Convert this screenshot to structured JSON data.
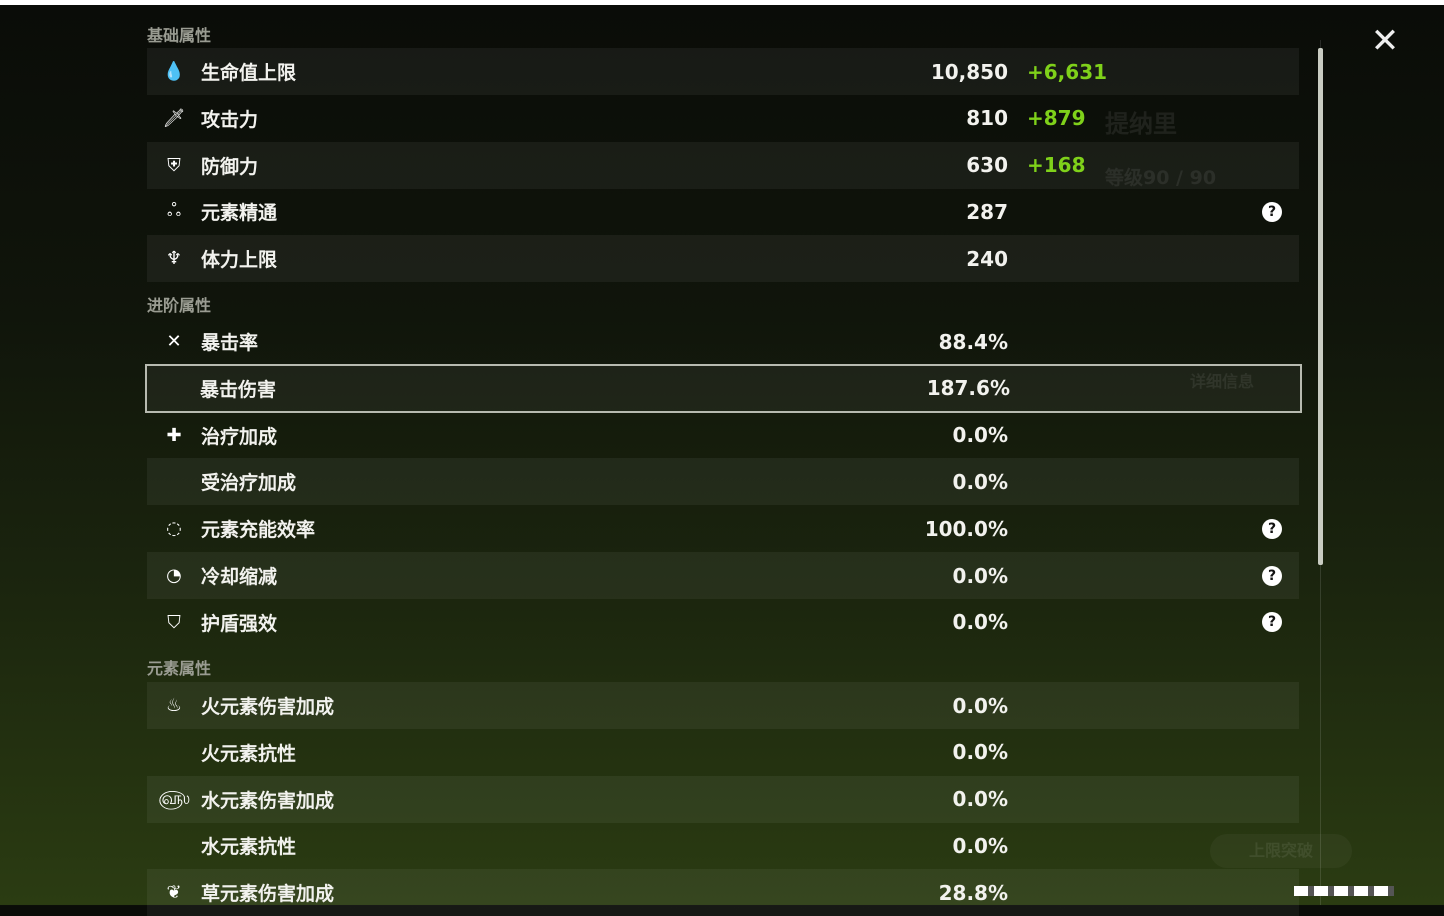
{
  "background": {
    "character_name": "提纳里",
    "level": "等级90 / 90",
    "details_button": "详细信息",
    "ascend_button": "上限突破"
  },
  "sections": [
    {
      "title": "基础属性",
      "rows": [
        {
          "icon": "hp-drop-icon",
          "glyph": "💧",
          "label": "生命值上限",
          "value": "10,850",
          "bonus": "+6,631"
        },
        {
          "icon": "sword-icon",
          "glyph": "🗡",
          "label": "攻击力",
          "value": "810",
          "bonus": "+879"
        },
        {
          "icon": "shield-icon",
          "glyph": "⛨",
          "label": "防御力",
          "value": "630",
          "bonus": "+168"
        },
        {
          "icon": "elemental-mastery-icon",
          "glyph": "ஃ",
          "label": "元素精通",
          "value": "287",
          "help": true
        },
        {
          "icon": "stamina-icon",
          "glyph": "♆",
          "label": "体力上限",
          "value": "240"
        }
      ]
    },
    {
      "title": "进阶属性",
      "rows": [
        {
          "icon": "crit-rate-icon",
          "glyph": "✕",
          "label": "暴击率",
          "value": "88.4%"
        },
        {
          "icon": "crit-dmg-icon",
          "glyph": "",
          "label": "暴击伤害",
          "value": "187.6%",
          "selected": true
        },
        {
          "icon": "healing-icon",
          "glyph": "✚",
          "label": "治疗加成",
          "value": "0.0%"
        },
        {
          "icon": "",
          "glyph": "",
          "label": "受治疗加成",
          "value": "0.0%"
        },
        {
          "icon": "energy-recharge-icon",
          "glyph": "◌",
          "label": "元素充能效率",
          "value": "100.0%",
          "help": true
        },
        {
          "icon": "cooldown-icon",
          "glyph": "◔",
          "label": "冷却缩减",
          "value": "0.0%",
          "help": true
        },
        {
          "icon": "shield-strength-icon",
          "glyph": "⛉",
          "label": "护盾强效",
          "value": "0.0%",
          "help": true
        }
      ]
    },
    {
      "title": "元素属性",
      "rows": [
        {
          "icon": "pyro-icon",
          "glyph": "♨",
          "label": "火元素伤害加成",
          "value": "0.0%"
        },
        {
          "icon": "",
          "glyph": "",
          "label": "火元素抗性",
          "value": "0.0%"
        },
        {
          "icon": "hydro-icon",
          "glyph": "௵",
          "label": "水元素伤害加成",
          "value": "0.0%"
        },
        {
          "icon": "",
          "glyph": "",
          "label": "水元素抗性",
          "value": "0.0%"
        },
        {
          "icon": "dendro-icon",
          "glyph": "❦",
          "label": "草元素伤害加成",
          "value": "28.8%"
        }
      ]
    }
  ],
  "help_glyph": "?",
  "close_glyph": "✕",
  "colors": {
    "bonus": "#7fd11a",
    "selected_outline": "#b7bab0"
  }
}
